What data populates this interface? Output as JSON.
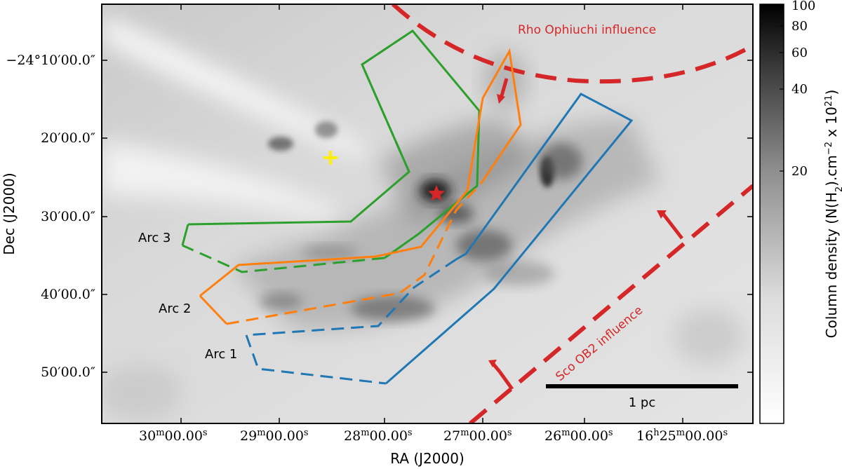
{
  "figure": {
    "x_axis_label": "RA (J2000)",
    "y_axis_label": "Dec (J2000)",
    "ra_ticks": [
      {
        "m": "30",
        "s": "00.00"
      },
      {
        "m": "29",
        "s": "00.00"
      },
      {
        "m": "28",
        "s": "00.00"
      },
      {
        "m": "27",
        "s": "00.00"
      },
      {
        "m": "26",
        "s": "00.00"
      },
      {
        "h": "16",
        "m": "25",
        "s": "00.00"
      }
    ],
    "dec_ticks": [
      {
        "deg": "−24",
        "min": "10",
        "sec": "00.0"
      },
      {
        "min": "20",
        "sec": "00.0"
      },
      {
        "min": "30",
        "sec": "00.0"
      },
      {
        "min": "40",
        "sec": "00.0"
      },
      {
        "min": "50",
        "sec": "00.0"
      }
    ],
    "colorbar": {
      "label_prefix": "Column density (N(H",
      "label_sub": "2",
      "label_mid": ").cm",
      "label_sup1": "−2",
      "label_mid2": " x 10",
      "label_sup2": "21",
      "label_suffix": ")",
      "ticks": [
        "100",
        "80",
        "60",
        "40",
        "20"
      ]
    },
    "regions": {
      "arc1": "Arc 1",
      "arc2": "Arc 2",
      "arc3": "Arc 3"
    },
    "influences": {
      "rho_oph": "Rho Ophiuchi influence",
      "sco_ob2": "Sco OB2 influence"
    },
    "scale_bar": "1 pc",
    "colors": {
      "arc1": "#1f77b4",
      "arc2": "#ff7f0e",
      "arc3": "#2ca02c",
      "influence": "#d62728",
      "star": "#d62728",
      "cross": "#ffee00"
    }
  }
}
